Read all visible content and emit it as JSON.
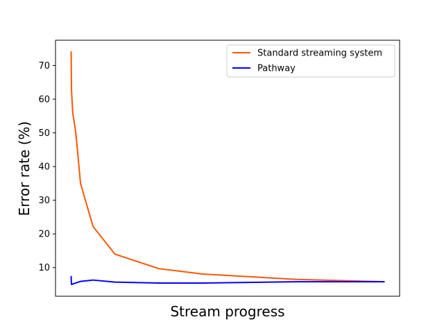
{
  "chart_data": {
    "type": "line",
    "title": "",
    "xlabel": "Stream progress",
    "ylabel": "Error rate (%)",
    "xlim": [
      -0.05,
      1.05
    ],
    "ylim": [
      1.5,
      77.5
    ],
    "yticks": [
      10,
      20,
      30,
      40,
      50,
      60,
      70
    ],
    "x_ticks_shown": false,
    "grid": false,
    "legend_position": "upper-right",
    "series": [
      {
        "name": "Standard streaming system",
        "color": "#ff5500",
        "x": [
          0.0,
          0.001,
          0.005,
          0.015,
          0.03,
          0.07,
          0.14,
          0.28,
          0.42,
          0.72,
          1.0
        ],
        "y": [
          74,
          63,
          56,
          50,
          35,
          22.2,
          14,
          9.7,
          8.1,
          6.5,
          5.8
        ]
      },
      {
        "name": "Pathway",
        "color": "#0000ff",
        "x": [
          0.0,
          0.001,
          0.01,
          0.03,
          0.07,
          0.14,
          0.28,
          0.42,
          0.72,
          1.0
        ],
        "y": [
          7.3,
          5.0,
          5.3,
          5.9,
          6.3,
          5.7,
          5.4,
          5.4,
          5.8,
          5.8
        ]
      }
    ]
  }
}
